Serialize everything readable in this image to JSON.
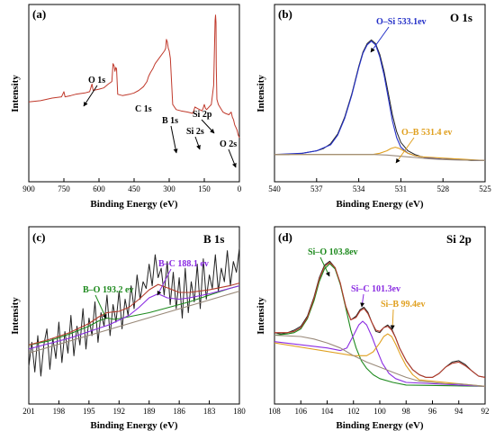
{
  "colors": {
    "raw": "#222222",
    "envelope": "#b33a2a",
    "background": "#9a8a7a",
    "blue": "#2430c8",
    "orange": "#e0a020",
    "green": "#1e8a1e",
    "purple": "#8a2be2",
    "survey": "#c0392b"
  },
  "chart_data": [
    {
      "type": "line",
      "panel": "(a)",
      "title": "",
      "xlabel": "Binding Energy (eV)",
      "ylabel": "Intensity",
      "xlim": [
        900,
        0
      ],
      "xticks": [
        900,
        750,
        600,
        450,
        300,
        150,
        0
      ],
      "series": [
        {
          "x": [
            900,
            850,
            800,
            760,
            750,
            745,
            720,
            700,
            660,
            640,
            630,
            625,
            600,
            580,
            560,
            545,
            540,
            535,
            532,
            528,
            525,
            520,
            500,
            470,
            450,
            430,
            410,
            395,
            388,
            380,
            370,
            360,
            340,
            320,
            315,
            312,
            308,
            304,
            300,
            295,
            290,
            285,
            270,
            250,
            220,
            200,
            195,
            190,
            180,
            160,
            155,
            150,
            145,
            140,
            130,
            120,
            110,
            104,
            102,
            100,
            99,
            96,
            90,
            80,
            70,
            60,
            45,
            40,
            35,
            30,
            25,
            20,
            15,
            10,
            5,
            0
          ],
          "y": [
            0.32,
            0.33,
            0.35,
            0.36,
            0.4,
            0.36,
            0.37,
            0.38,
            0.39,
            0.4,
            0.46,
            0.41,
            0.42,
            0.43,
            0.46,
            0.48,
            0.62,
            0.6,
            0.56,
            0.59,
            0.58,
            0.38,
            0.37,
            0.38,
            0.39,
            0.41,
            0.44,
            0.48,
            0.52,
            0.55,
            0.58,
            0.62,
            0.67,
            0.72,
            0.74,
            0.81,
            0.79,
            0.74,
            0.72,
            0.66,
            0.48,
            0.3,
            0.26,
            0.25,
            0.24,
            0.23,
            0.25,
            0.28,
            0.27,
            0.25,
            0.27,
            0.3,
            0.27,
            0.26,
            0.28,
            0.3,
            0.45,
            0.96,
            1.0,
            0.94,
            0.6,
            0.34,
            0.3,
            0.27,
            0.24,
            0.23,
            0.22,
            0.23,
            0.24,
            0.2,
            0.18,
            0.14,
            0.12,
            0.1,
            0.06,
            0.04
          ]
        }
      ],
      "annotations": [
        {
          "text": "O 1s",
          "x": 532
        },
        {
          "text": "C 1s",
          "x": 285
        },
        {
          "text": "B 1s",
          "x": 190
        },
        {
          "text": "Si 2s",
          "x": 150
        },
        {
          "text": "Si 2p",
          "x": 100
        },
        {
          "text": "O 2s",
          "x": 24
        }
      ]
    },
    {
      "type": "line",
      "panel": "(b)",
      "title": "O 1s",
      "xlabel": "Binding Energy (eV)",
      "ylabel": "Intensity",
      "xlim": [
        540,
        525
      ],
      "xticks": [
        540,
        537,
        534,
        531,
        528,
        525
      ],
      "series": [
        {
          "role": "raw",
          "x": [
            540,
            539,
            538,
            537,
            536.5,
            536,
            535.5,
            535,
            534.5,
            534,
            533.7,
            533.4,
            533.1,
            532.8,
            532.5,
            532.2,
            531.9,
            531.6,
            531.3,
            531,
            530.5,
            530,
            529.5,
            529,
            528,
            527,
            526,
            525
          ],
          "y": [
            0.05,
            0.05,
            0.06,
            0.08,
            0.1,
            0.14,
            0.22,
            0.36,
            0.55,
            0.78,
            0.9,
            0.97,
            1.0,
            0.97,
            0.88,
            0.74,
            0.56,
            0.38,
            0.24,
            0.15,
            0.08,
            0.05,
            0.03,
            0.02,
            0.01,
            0.01,
            0.0,
            0.0
          ]
        },
        {
          "role": "O-Si",
          "x": [
            540,
            538,
            537,
            536,
            535.5,
            535,
            534.5,
            534,
            533.7,
            533.4,
            533.1,
            532.8,
            532.5,
            532.2,
            531.9,
            531.6,
            531.3,
            531,
            530.5,
            530,
            529,
            528,
            525
          ],
          "y": [
            0.05,
            0.06,
            0.08,
            0.13,
            0.21,
            0.35,
            0.54,
            0.77,
            0.89,
            0.96,
            0.99,
            0.96,
            0.86,
            0.71,
            0.52,
            0.33,
            0.19,
            0.11,
            0.06,
            0.04,
            0.02,
            0.01,
            0.0
          ]
        },
        {
          "role": "O-B",
          "x": [
            540,
            533,
            532.5,
            532,
            531.7,
            531.4,
            531.1,
            530.8,
            530.5,
            530,
            529.5,
            525
          ],
          "y": [
            0.05,
            0.05,
            0.06,
            0.08,
            0.1,
            0.11,
            0.1,
            0.08,
            0.06,
            0.04,
            0.03,
            0.0
          ]
        },
        {
          "role": "background",
          "x": [
            540,
            538,
            536,
            534,
            533,
            532,
            531,
            530,
            529,
            528,
            527,
            526,
            525
          ],
          "y": [
            0.05,
            0.05,
            0.05,
            0.05,
            0.05,
            0.045,
            0.035,
            0.025,
            0.015,
            0.008,
            0.004,
            0.002,
            0.0
          ]
        }
      ],
      "annotations": [
        {
          "text": "O–Si 533.1ev",
          "x": 533.1
        },
        {
          "text": "O–B 531.4 ev",
          "x": 531.4
        }
      ]
    },
    {
      "type": "line",
      "panel": "(c)",
      "title": "B 1s",
      "xlabel": "Binding Energy (eV)",
      "ylabel": "Intensity",
      "xlim": [
        201,
        180
      ],
      "xticks": [
        201,
        198,
        195,
        192,
        189,
        186,
        183,
        180
      ],
      "series": [
        {
          "role": "raw",
          "x": [
            201,
            200.7,
            200.4,
            200.1,
            199.8,
            199.5,
            199.2,
            198.9,
            198.6,
            198.3,
            198,
            197.7,
            197.4,
            197.1,
            196.8,
            196.5,
            196.2,
            195.9,
            195.6,
            195.3,
            195,
            194.7,
            194.4,
            194.1,
            193.8,
            193.5,
            193.2,
            192.9,
            192.6,
            192.3,
            192,
            191.7,
            191.4,
            191.1,
            190.8,
            190.5,
            190.2,
            189.9,
            189.6,
            189.3,
            189,
            188.7,
            188.4,
            188.1,
            187.8,
            187.5,
            187.2,
            186.9,
            186.6,
            186.3,
            186,
            185.7,
            185.4,
            185.1,
            184.8,
            184.5,
            184.2,
            183.9,
            183.6,
            183.3,
            183,
            182.7,
            182.4,
            182.1,
            181.8,
            181.5,
            181.2,
            180.9,
            180.6,
            180.3,
            180
          ],
          "y": [
            0.12,
            0.3,
            0.08,
            0.35,
            0.05,
            0.28,
            0.4,
            0.1,
            0.33,
            0.18,
            0.45,
            0.15,
            0.38,
            0.22,
            0.5,
            0.2,
            0.42,
            0.28,
            0.55,
            0.25,
            0.48,
            0.35,
            0.6,
            0.3,
            0.52,
            0.42,
            0.65,
            0.35,
            0.58,
            0.45,
            0.68,
            0.4,
            0.62,
            0.5,
            0.72,
            0.55,
            0.8,
            0.62,
            0.75,
            0.7,
            0.88,
            0.72,
            0.95,
            0.78,
            0.85,
            0.65,
            0.9,
            0.58,
            0.82,
            0.55,
            0.78,
            0.48,
            0.85,
            0.52,
            0.75,
            0.6,
            0.88,
            0.55,
            0.92,
            0.62,
            0.8,
            0.7,
            0.95,
            0.68,
            0.85,
            0.75,
            0.98,
            0.72,
            0.9,
            0.82,
            1.0
          ]
        },
        {
          "role": "B-O",
          "x": [
            201,
            199,
            197,
            195,
            194,
            193.2,
            192.4,
            191,
            189,
            187,
            185,
            183,
            181,
            180
          ],
          "y": [
            0.28,
            0.31,
            0.36,
            0.42,
            0.46,
            0.48,
            0.47,
            0.49,
            0.52,
            0.56,
            0.6,
            0.65,
            0.7,
            0.72
          ]
        },
        {
          "role": "B-C",
          "x": [
            201,
            199,
            197,
            195,
            193,
            191,
            190,
            189,
            188.1,
            187.2,
            186,
            185,
            183,
            181,
            180
          ],
          "y": [
            0.25,
            0.29,
            0.33,
            0.38,
            0.43,
            0.5,
            0.56,
            0.63,
            0.66,
            0.63,
            0.62,
            0.63,
            0.66,
            0.7,
            0.72
          ]
        },
        {
          "role": "envelope",
          "x": [
            201,
            199,
            197,
            195,
            194,
            193.2,
            192,
            191,
            190,
            189,
            188.1,
            187,
            186,
            185,
            183,
            181,
            180
          ],
          "y": [
            0.28,
            0.32,
            0.37,
            0.44,
            0.49,
            0.52,
            0.53,
            0.56,
            0.62,
            0.69,
            0.73,
            0.7,
            0.67,
            0.67,
            0.69,
            0.72,
            0.74
          ]
        },
        {
          "role": "background",
          "x": [
            201,
            180
          ],
          "y": [
            0.22,
            0.68
          ]
        }
      ],
      "annotations": [
        {
          "text": "B–C 188.1 ev",
          "x": 188.1
        },
        {
          "text": "B–O 193.2 ev",
          "x": 193.2
        }
      ]
    },
    {
      "type": "line",
      "panel": "(d)",
      "title": "Si 2p",
      "xlabel": "Binding Energy (eV)",
      "ylabel": "Intensity",
      "xlim": [
        108,
        92
      ],
      "xticks": [
        108,
        106,
        104,
        102,
        100,
        98,
        96,
        94,
        92
      ],
      "series": [
        {
          "role": "raw",
          "x": [
            108,
            107.5,
            107,
            106.5,
            106,
            105.5,
            105,
            104.6,
            104.2,
            103.8,
            103.4,
            103,
            102.6,
            102.2,
            101.8,
            101.5,
            101.2,
            100.9,
            100.6,
            100.3,
            100,
            99.7,
            99.4,
            99.1,
            98.8,
            98.5,
            98,
            97.5,
            97,
            96.5,
            96,
            95.5,
            95,
            94.5,
            94,
            93.5,
            93,
            92.5,
            92
          ],
          "y": [
            0.42,
            0.41,
            0.42,
            0.44,
            0.47,
            0.55,
            0.7,
            0.85,
            0.95,
            0.98,
            0.93,
            0.8,
            0.63,
            0.52,
            0.55,
            0.6,
            0.62,
            0.58,
            0.5,
            0.43,
            0.42,
            0.46,
            0.48,
            0.45,
            0.38,
            0.3,
            0.2,
            0.13,
            0.09,
            0.07,
            0.07,
            0.1,
            0.15,
            0.19,
            0.2,
            0.17,
            0.12,
            0.08,
            0.07
          ]
        },
        {
          "role": "Si-O",
          "x": [
            108,
            107,
            106.5,
            106,
            105.5,
            105,
            104.6,
            104.2,
            103.8,
            103.4,
            103,
            102.6,
            102.2,
            101.8,
            101.4,
            101,
            100.5,
            100,
            99,
            98,
            92
          ],
          "y": [
            0.4,
            0.41,
            0.42,
            0.45,
            0.53,
            0.67,
            0.82,
            0.92,
            0.96,
            0.92,
            0.8,
            0.62,
            0.44,
            0.3,
            0.2,
            0.14,
            0.09,
            0.06,
            0.03,
            0.01,
            0.0
          ]
        },
        {
          "role": "Si-C",
          "x": [
            108,
            104,
            103,
            102.5,
            102,
            101.6,
            101.3,
            101,
            100.6,
            100.2,
            99.8,
            99.3,
            98.8,
            98,
            92
          ],
          "y": [
            0.35,
            0.3,
            0.28,
            0.3,
            0.4,
            0.48,
            0.51,
            0.48,
            0.39,
            0.28,
            0.18,
            0.1,
            0.06,
            0.03,
            0.0
          ]
        },
        {
          "role": "Si-B",
          "x": [
            108,
            102,
            101,
            100.5,
            100,
            99.7,
            99.4,
            99.1,
            98.8,
            98.4,
            98,
            97.5,
            97,
            92
          ],
          "y": [
            0.34,
            0.24,
            0.24,
            0.27,
            0.34,
            0.39,
            0.41,
            0.39,
            0.33,
            0.24,
            0.16,
            0.09,
            0.05,
            0.0
          ]
        },
        {
          "role": "envelope",
          "x": [
            108,
            107,
            106.5,
            106,
            105.5,
            105,
            104.6,
            104.2,
            103.8,
            103.4,
            103,
            102.6,
            102.2,
            101.8,
            101.5,
            101.2,
            100.9,
            100.6,
            100.3,
            100,
            99.7,
            99.4,
            99.1,
            98.8,
            98.5,
            98,
            97.5,
            97,
            96.5,
            96,
            95.5,
            95,
            94.5,
            94,
            93.5,
            93,
            92.5,
            92
          ],
          "y": [
            0.42,
            0.42,
            0.43,
            0.46,
            0.54,
            0.69,
            0.84,
            0.94,
            0.97,
            0.93,
            0.81,
            0.63,
            0.52,
            0.54,
            0.59,
            0.61,
            0.57,
            0.5,
            0.44,
            0.43,
            0.46,
            0.47,
            0.44,
            0.38,
            0.3,
            0.2,
            0.13,
            0.09,
            0.07,
            0.07,
            0.1,
            0.15,
            0.18,
            0.19,
            0.16,
            0.12,
            0.08,
            0.07
          ]
        },
        {
          "role": "background",
          "x": [
            108,
            106,
            105,
            104,
            103,
            102,
            101,
            100,
            99,
            98,
            97,
            96,
            95,
            94,
            93,
            92
          ],
          "y": [
            0.4,
            0.39,
            0.37,
            0.34,
            0.3,
            0.24,
            0.19,
            0.15,
            0.11,
            0.07,
            0.04,
            0.03,
            0.02,
            0.02,
            0.01,
            0.0
          ]
        }
      ],
      "annotations": [
        {
          "text": "Si–O 103.8ev",
          "x": 103.8
        },
        {
          "text": "Si–C 101.3ev",
          "x": 101.3
        },
        {
          "text": "Si–B 99.4ev",
          "x": 99.4
        }
      ]
    }
  ]
}
